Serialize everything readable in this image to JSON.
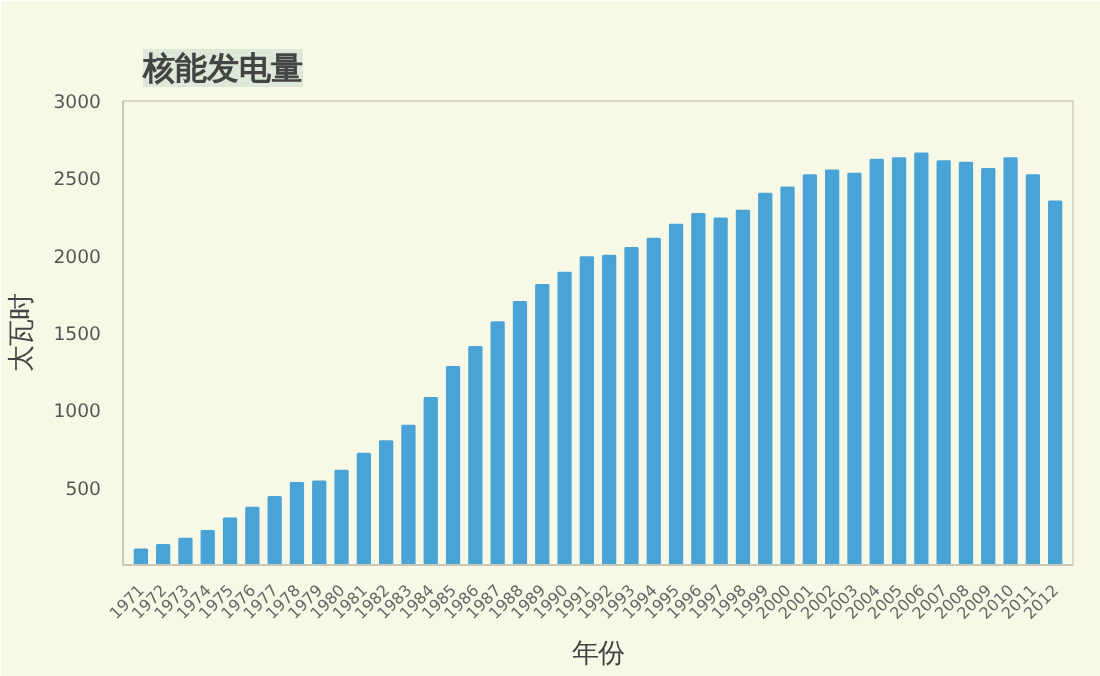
{
  "chart_data": {
    "type": "bar",
    "title": "核能发电量",
    "xlabel": "年份",
    "ylabel": "太瓦时",
    "categories": [
      "1971",
      "1972",
      "1973",
      "1974",
      "1975",
      "1976",
      "1977",
      "1978",
      "1979",
      "1980",
      "1981",
      "1982",
      "1983",
      "1984",
      "1985",
      "1986",
      "1987",
      "1988",
      "1989",
      "1990",
      "1991",
      "1992",
      "1993",
      "1994",
      "1995",
      "1996",
      "1997",
      "1998",
      "1999",
      "2000",
      "2001",
      "2002",
      "2003",
      "2004",
      "2005",
      "2006",
      "2007",
      "2008",
      "2009",
      "2010",
      "2011",
      "2012"
    ],
    "values": [
      100,
      130,
      170,
      220,
      300,
      370,
      440,
      530,
      540,
      610,
      720,
      800,
      900,
      1080,
      1280,
      1410,
      1570,
      1700,
      1810,
      1890,
      1990,
      2000,
      2050,
      2110,
      2200,
      2270,
      2240,
      2290,
      2400,
      2440,
      2520,
      2550,
      2530,
      2620,
      2630,
      2660,
      2610,
      2600,
      2560,
      2630,
      2520,
      2350
    ],
    "color": "#4aa3d6",
    "ylim": [
      0,
      3000
    ],
    "yticks": [
      500,
      1000,
      1500,
      2000,
      2500,
      3000
    ],
    "grid": false
  }
}
